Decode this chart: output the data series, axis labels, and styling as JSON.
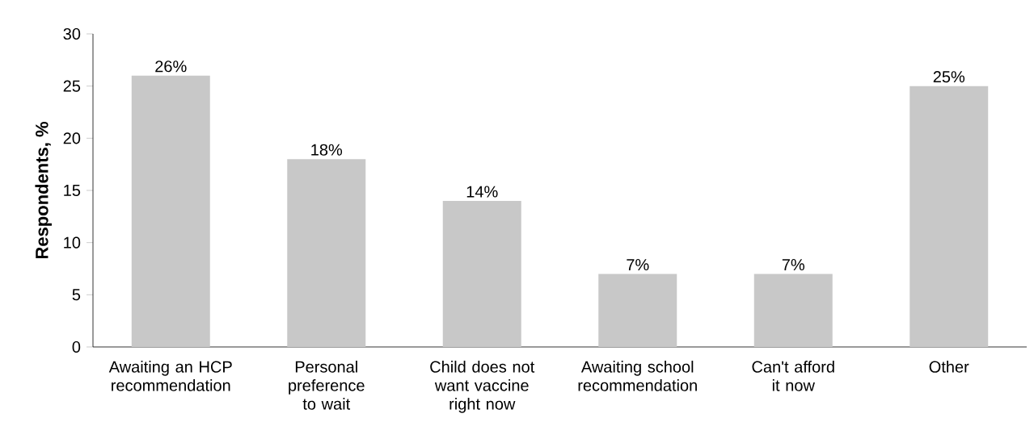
{
  "chart_data": {
    "type": "bar",
    "ylabel": "Respondents, %",
    "categories": [
      "Awaiting an HCP recommendation",
      "Personal preference to wait",
      "Child does not want vaccine right now",
      "Awaiting school recommendation",
      "Can't afford it now",
      "Other"
    ],
    "values": [
      26,
      18,
      14,
      7,
      7,
      25
    ],
    "value_labels": [
      "26%",
      "18%",
      "14%",
      "7%",
      "7%",
      "25%"
    ],
    "color": "#c8c8c8",
    "ylim": [
      0,
      30
    ],
    "yticks": [
      0,
      5,
      10,
      15,
      20,
      25,
      30
    ],
    "grid": false
  }
}
